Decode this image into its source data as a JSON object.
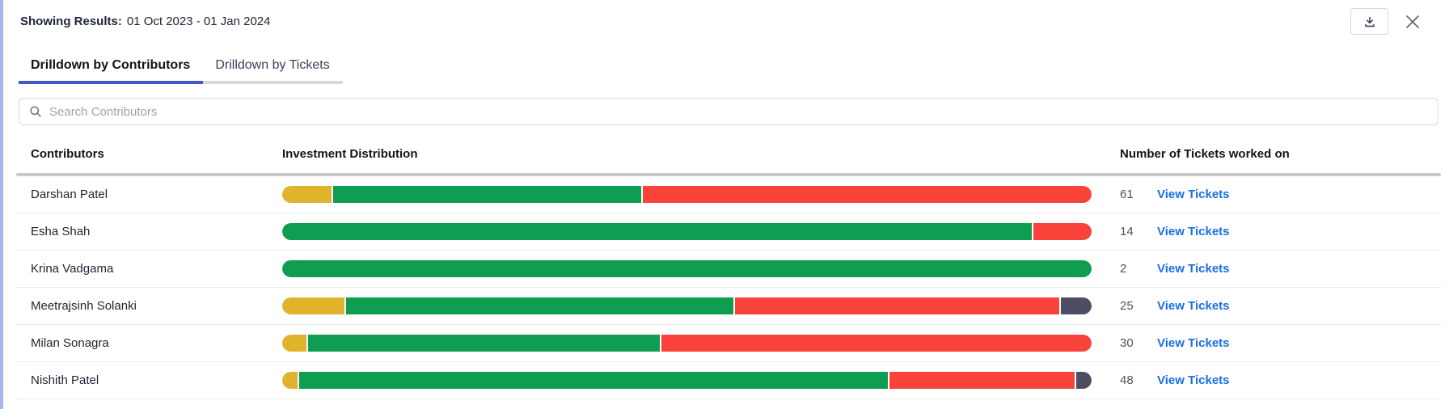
{
  "header": {
    "results_label": "Showing Results:",
    "date_range": "01 Oct 2023 - 01 Jan 2024"
  },
  "tabs": [
    {
      "label": "Drilldown by Contributors",
      "active": true
    },
    {
      "label": "Drilldown by Tickets",
      "active": false
    }
  ],
  "search": {
    "placeholder": "Search Contributors",
    "value": ""
  },
  "table": {
    "columns": {
      "contributors": "Contributors",
      "distribution": "Investment Distribution",
      "tickets": "Number of Tickets worked on"
    },
    "view_tickets_label": "View Tickets",
    "rows": [
      {
        "name": "Darshan Patel",
        "tickets": "61",
        "segments": [
          {
            "color": "#e0b32c",
            "pct": 6.1
          },
          {
            "color": "#0f9d51",
            "pct": 38.2
          },
          {
            "color": "#f9423a",
            "pct": 55.7
          }
        ]
      },
      {
        "name": "Esha Shah",
        "tickets": "14",
        "segments": [
          {
            "color": "#0f9d51",
            "pct": 92.8
          },
          {
            "color": "#f9423a",
            "pct": 7.2
          }
        ]
      },
      {
        "name": "Krina Vadgama",
        "tickets": "2",
        "segments": [
          {
            "color": "#0f9d51",
            "pct": 100
          }
        ]
      },
      {
        "name": "Meetrajsinh Solanki",
        "tickets": "25",
        "segments": [
          {
            "color": "#e0b32c",
            "pct": 7.7
          },
          {
            "color": "#0f9d51",
            "pct": 48.2
          },
          {
            "color": "#f9423a",
            "pct": 40.3
          },
          {
            "color": "#4d4e66",
            "pct": 3.8
          }
        ]
      },
      {
        "name": "Milan Sonagra",
        "tickets": "30",
        "segments": [
          {
            "color": "#e0b32c",
            "pct": 3.0
          },
          {
            "color": "#0f9d51",
            "pct": 43.6
          },
          {
            "color": "#f9423a",
            "pct": 53.4
          }
        ]
      },
      {
        "name": "Nishith Patel",
        "tickets": "48",
        "segments": [
          {
            "color": "#e0b32c",
            "pct": 1.9
          },
          {
            "color": "#0f9d51",
            "pct": 73.2
          },
          {
            "color": "#f9423a",
            "pct": 23.0
          },
          {
            "color": "#4d4e66",
            "pct": 1.9
          }
        ]
      }
    ]
  },
  "colors": {
    "segment_yellow": "#e0b32c",
    "segment_green": "#0f9d51",
    "segment_red": "#f9423a",
    "segment_dark": "#4d4e66",
    "link_blue": "#1a6fe5",
    "tab_underline": "#4556cb",
    "left_border": "#aab5e9"
  }
}
